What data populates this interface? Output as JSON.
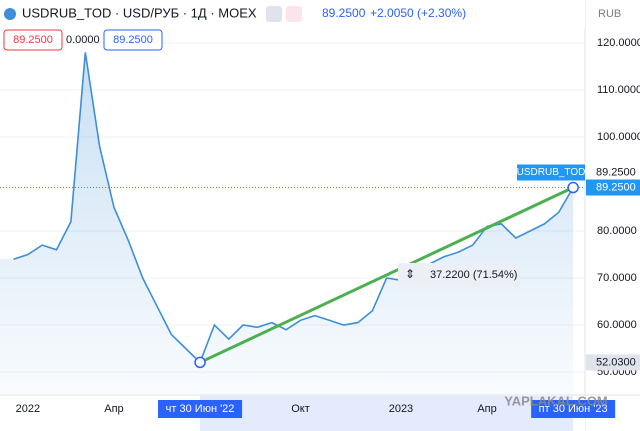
{
  "header": {
    "title": "USDRUB_TOD · USD/РУБ · 1Д · MOEX",
    "last": "89.2500",
    "change": "+2.0050 (+2.30%)"
  },
  "order_boxes": [
    "89.2500",
    "0.0000",
    "89.2500"
  ],
  "currency": "RUB",
  "watermark": "YAPLAKAL.COM",
  "chart_data": {
    "type": "area",
    "color": "#3d8fd6",
    "categories": [
      null,
      "2022",
      null,
      null,
      null,
      null,
      null,
      "Апр",
      null,
      null,
      null,
      null,
      null,
      "чт 30 Июн '22",
      null,
      null,
      null,
      null,
      null,
      null,
      "Окт",
      null,
      null,
      null,
      null,
      null,
      null,
      "2023",
      null,
      null,
      null,
      null,
      null,
      "Апр",
      null,
      null,
      null,
      null,
      null,
      "пт 30 Июн '23"
    ],
    "values": [
      74,
      75,
      77,
      76,
      82,
      118,
      98,
      85,
      78,
      70,
      64,
      58,
      55,
      52.03,
      60,
      57,
      60,
      59.5,
      60.5,
      59,
      61,
      62,
      61,
      60,
      60.5,
      63,
      70,
      69.5,
      70.5,
      73,
      74.5,
      75.5,
      77,
      81,
      81.5,
      78.5,
      80,
      81.5,
      84,
      89.25
    ],
    "ylim": [
      45.1,
      129.15
    ],
    "yticks": [
      {
        "value": 120,
        "label": "120.0000"
      },
      {
        "value": 110,
        "label": "110.0000"
      },
      {
        "value": 100,
        "label": "100.0000"
      },
      {
        "value": 80,
        "label": "80.0000"
      },
      {
        "value": 70,
        "label": "70.0000"
      },
      {
        "value": 60,
        "label": "60.0000"
      },
      {
        "value": 50,
        "label": "50.0000"
      }
    ],
    "grid": true,
    "last_price": {
      "name": "USDRUB_TOD",
      "value": 89.25,
      "name_value": "89.2500",
      "label": "89.2500",
      "color": "#2196f3"
    },
    "low_price": {
      "value": 52.03,
      "label": "52.0300"
    },
    "trend_line": {
      "from": "чт 30 Июн '22",
      "to": "пт 30 Июн '23",
      "color": "#4caf50",
      "label": "37.2200 (71.54%)"
    }
  }
}
